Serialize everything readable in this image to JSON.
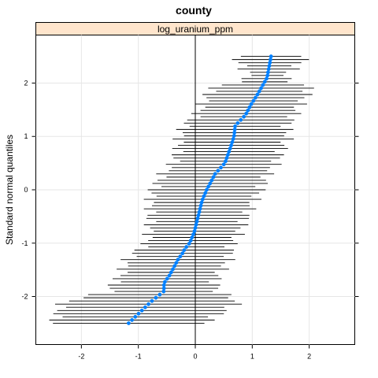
{
  "chart_data": {
    "type": "scatter",
    "title": "county",
    "panel_label": "log_uranium_ppm",
    "xlabel": "",
    "ylabel": "Standard normal quantiles",
    "xlim": [
      -2.8,
      2.8
    ],
    "ylim": [
      -2.9,
      2.9
    ],
    "x_ticks": [
      -2,
      -1,
      0,
      1,
      2
    ],
    "y_ticks": [
      -2,
      -1,
      0,
      1,
      2
    ],
    "grid": true,
    "reference_line_x": 0,
    "n_points": 85,
    "point_color": "#0080ff",
    "interval_color": "#000000",
    "strip_color": "#ffe5cc",
    "anchors": {
      "z": [
        -2.5,
        -2.1,
        -1.9,
        -1.75,
        -1.6,
        -1.5,
        -1.4,
        -1.3,
        -1.2,
        -1.1,
        -1.0,
        -0.8,
        -0.5,
        -0.2,
        0.0,
        0.3,
        0.5,
        0.8,
        1.0,
        1.2,
        1.4,
        1.6,
        1.8,
        2.1,
        2.5
      ],
      "x": [
        -1.17,
        -0.78,
        -0.55,
        -0.55,
        -0.45,
        -0.4,
        -0.35,
        -0.3,
        -0.23,
        -0.18,
        -0.1,
        -0.02,
        0.05,
        0.12,
        0.2,
        0.35,
        0.52,
        0.62,
        0.68,
        0.7,
        0.88,
        0.98,
        1.1,
        1.26,
        1.33
      ]
    },
    "half_width_anchors": {
      "z": [
        -2.5,
        -2.1,
        -1.9,
        -1.6,
        -1.3,
        -1.0,
        -0.5,
        0.0,
        0.5,
        1.0,
        1.5,
        1.9,
        2.1,
        2.5
      ],
      "w": [
        1.33,
        1.55,
        0.95,
        0.85,
        0.9,
        0.75,
        0.85,
        0.95,
        0.9,
        0.95,
        0.85,
        0.88,
        0.28,
        0.65
      ]
    }
  }
}
